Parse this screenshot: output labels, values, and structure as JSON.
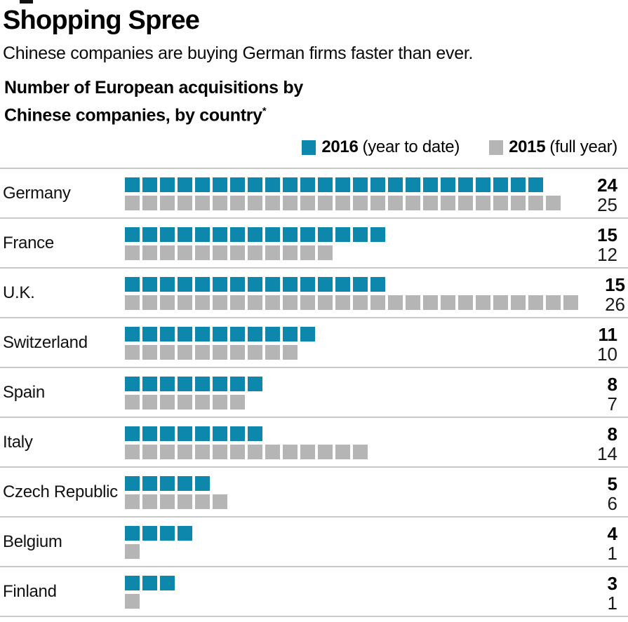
{
  "header": {
    "title": "Shopping Spree",
    "subtitle": "Chinese companies are buying German firms faster than ever.",
    "chart_heading_line1": "Number of European acquisitions by",
    "chart_heading_line2": "Chinese companies, by country",
    "footnote_marker": "*"
  },
  "legend": {
    "items": [
      {
        "label": "2016",
        "suffix": "(year to date)",
        "color": "#0e87ad"
      },
      {
        "label": "2015",
        "suffix": "(full year)",
        "color": "#b5b5b5"
      }
    ]
  },
  "colors": {
    "accent_2016": "#0e87ad",
    "gray_2015": "#b5b5b5",
    "divider": "#c9c9c9"
  },
  "chart_data": {
    "type": "bar",
    "variant": "unit-square-waffle-rows",
    "title": "Number of European acquisitions by Chinese companies, by country*",
    "xlabel": "",
    "ylabel": "",
    "legend_position": "top-right",
    "grid": false,
    "unit_value": 1,
    "categories": [
      "Germany",
      "France",
      "U.K.",
      "Switzerland",
      "Spain",
      "Italy",
      "Czech Republic",
      "Belgium",
      "Finland"
    ],
    "series": [
      {
        "name": "2016 (year to date)",
        "color": "#0e87ad",
        "values": [
          24,
          15,
          15,
          11,
          8,
          8,
          5,
          4,
          3
        ]
      },
      {
        "name": "2015 (full year)",
        "color": "#b5b5b5",
        "values": [
          25,
          12,
          26,
          10,
          7,
          14,
          6,
          1,
          1
        ]
      }
    ]
  }
}
